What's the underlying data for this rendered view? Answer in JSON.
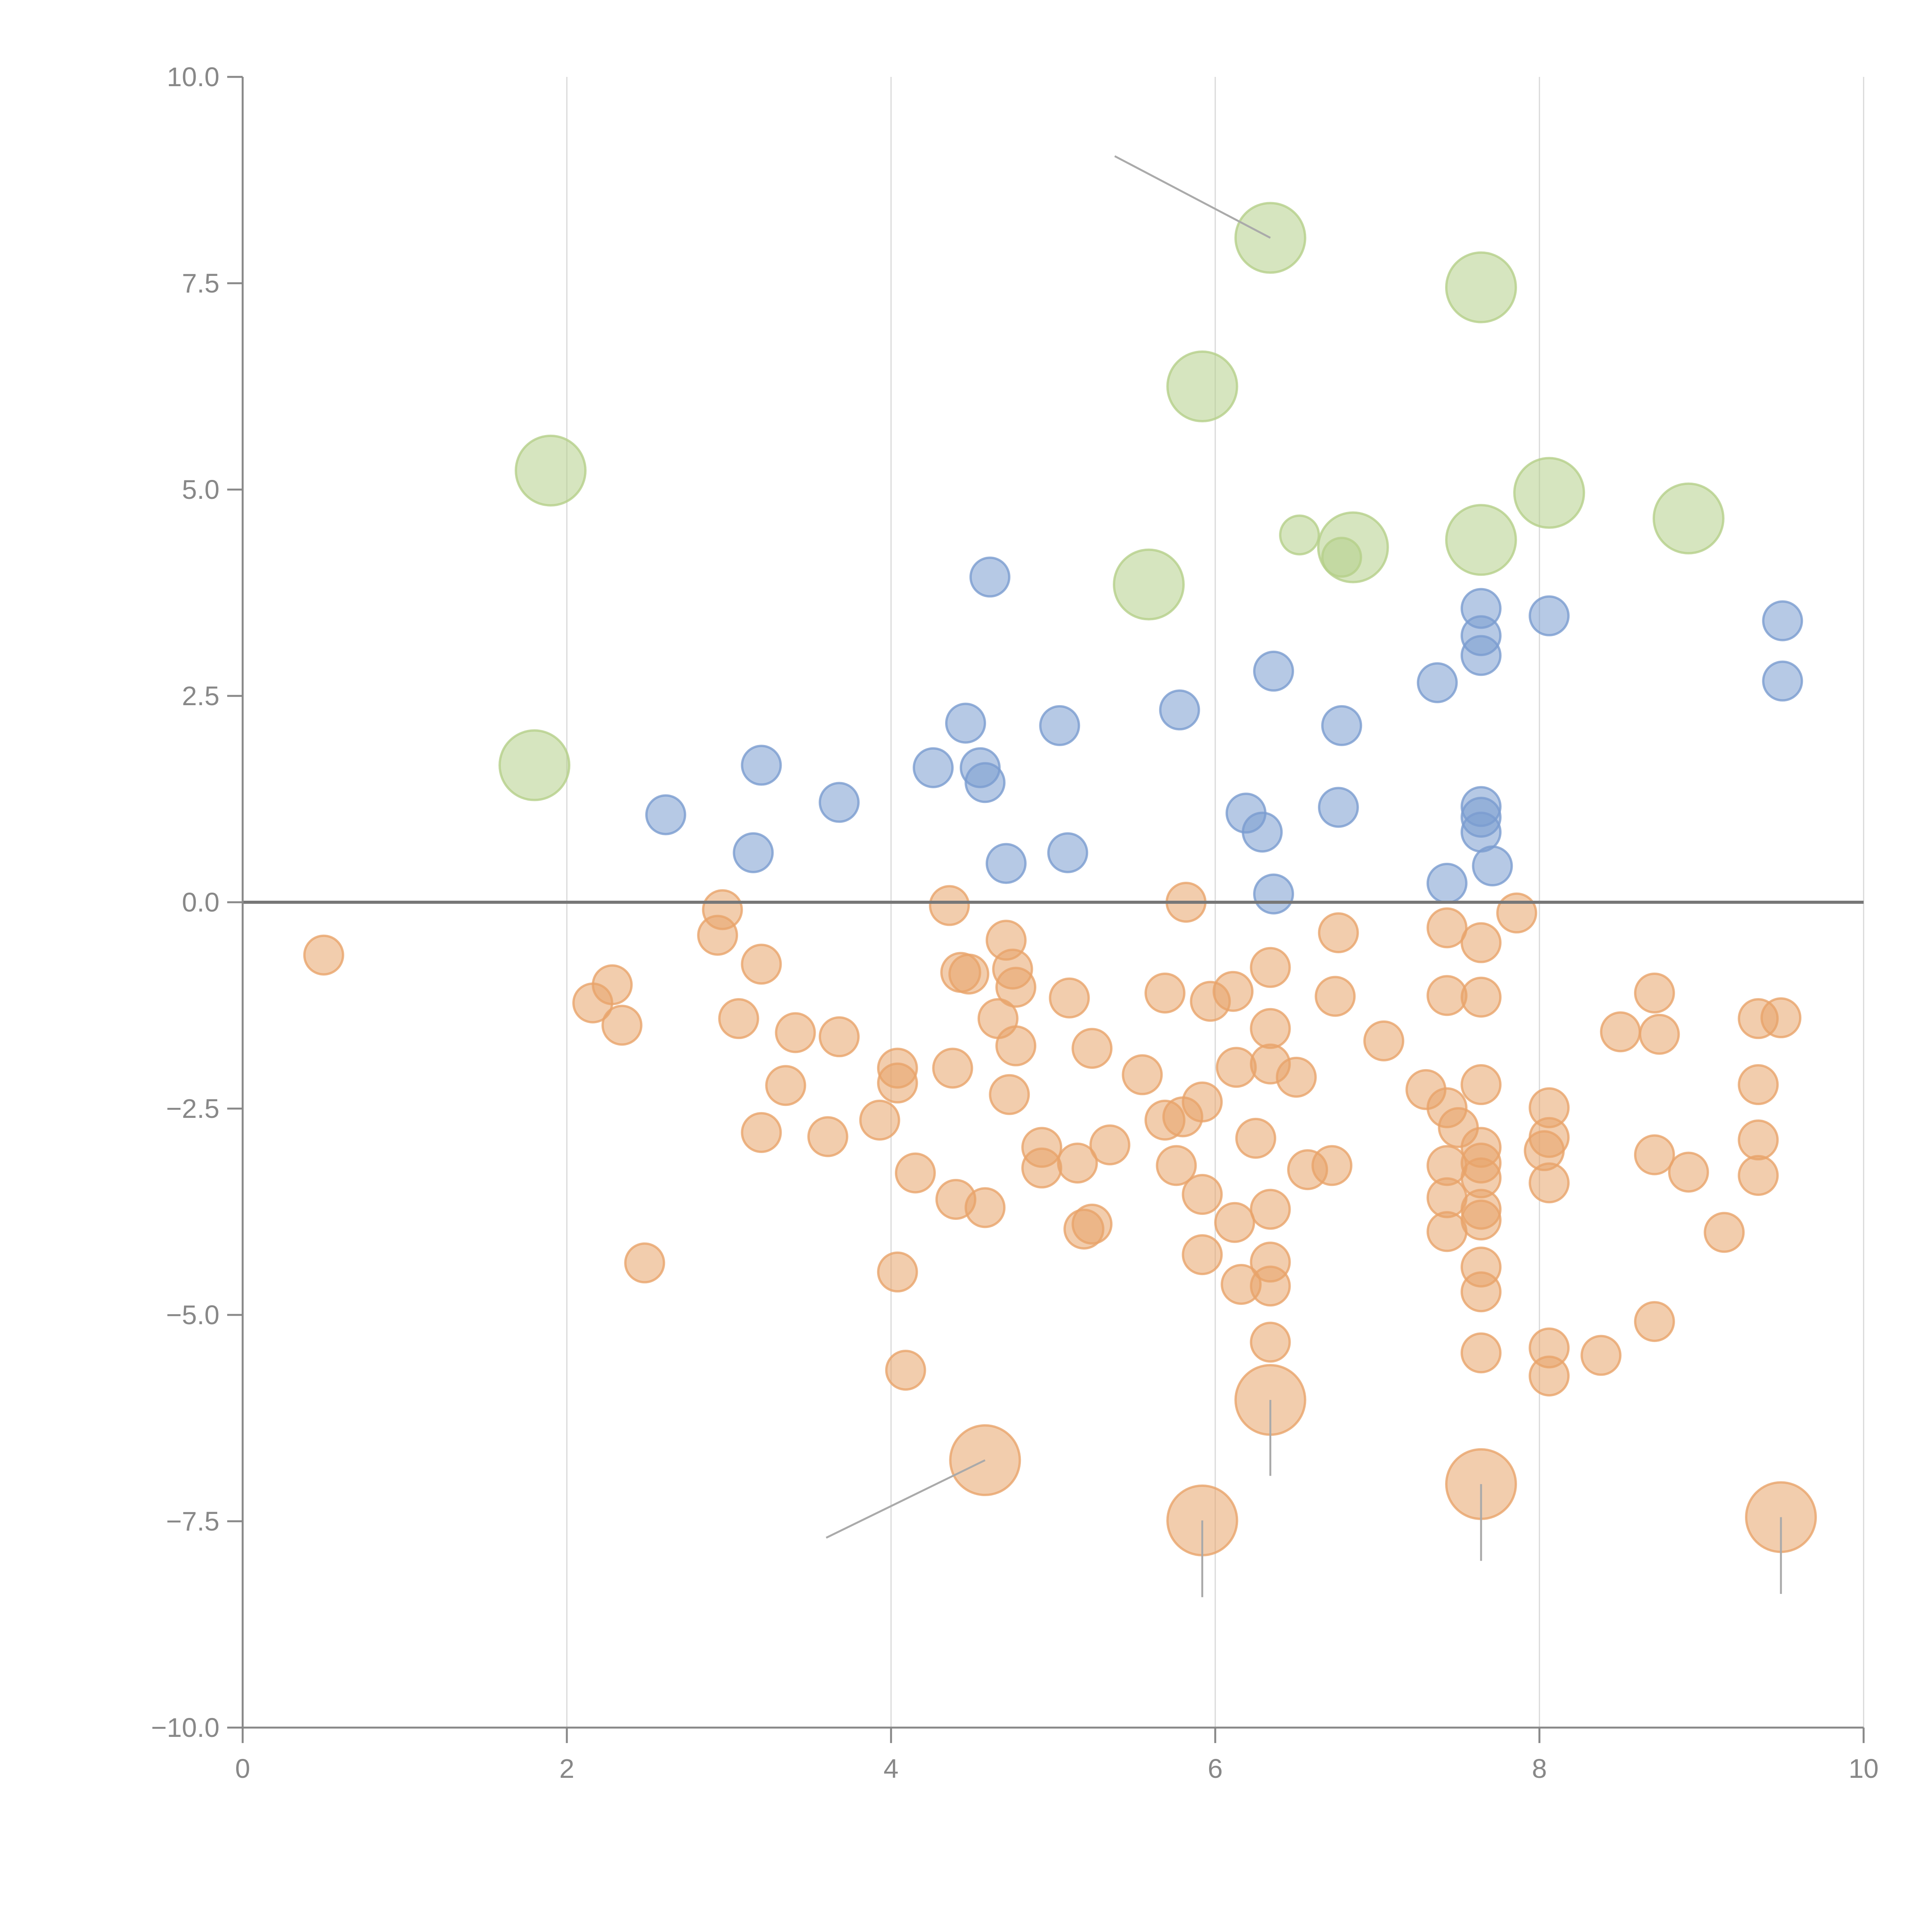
{
  "chart_data": {
    "type": "scatter",
    "title": "",
    "xlabel": "",
    "ylabel": "",
    "xlim": [
      0,
      10
    ],
    "ylim": [
      -10,
      10
    ],
    "x_ticks": [
      "0",
      "2",
      "4",
      "6",
      "8",
      "10"
    ],
    "y_ticks": [
      "10.0",
      "7.5",
      "5.0",
      "2.5",
      "0.0",
      "−2.5",
      "−5.0",
      "−7.5",
      "−10.0"
    ],
    "x_tick_values": [
      0,
      2,
      4,
      6,
      8,
      10
    ],
    "y_tick_values": [
      10,
      7.5,
      5,
      2.5,
      0,
      -2.5,
      -5,
      -7.5,
      -10
    ],
    "grid": "vertical",
    "colors": {
      "blue": "#7a9ccf",
      "green": "#b5d08a",
      "orange": "#e8a46a",
      "axis": "#888888",
      "zero_line": "#777777"
    },
    "series": [
      {
        "name": "blue",
        "color": "#7a9ccf",
        "size": "small",
        "points": [
          [
            2.61,
            1.06
          ],
          [
            3.15,
            0.6
          ],
          [
            3.2,
            1.66
          ],
          [
            3.68,
            1.21
          ],
          [
            4.26,
            1.63
          ],
          [
            4.46,
            2.17
          ],
          [
            4.55,
            1.63
          ],
          [
            4.58,
            1.45
          ],
          [
            4.71,
            0.47
          ],
          [
            4.61,
            3.94
          ],
          [
            5.04,
            2.14
          ],
          [
            5.09,
            0.6
          ],
          [
            5.78,
            2.33
          ],
          [
            6.19,
            1.08
          ],
          [
            6.29,
            0.85
          ],
          [
            6.36,
            2.8
          ],
          [
            6.36,
            0.1
          ],
          [
            6.78,
            2.14
          ],
          [
            6.76,
            1.15
          ],
          [
            7.37,
            2.66
          ],
          [
            7.43,
            0.23
          ],
          [
            7.64,
            3.56
          ],
          [
            7.64,
            3.23
          ],
          [
            7.64,
            2.99
          ],
          [
            7.64,
            1.16
          ],
          [
            7.64,
            1.03
          ],
          [
            7.64,
            0.85
          ],
          [
            7.71,
            0.44
          ],
          [
            8.06,
            3.47
          ],
          [
            9.5,
            3.41
          ],
          [
            9.5,
            2.68
          ]
        ]
      },
      {
        "name": "green",
        "color": "#b5d08a",
        "points": [
          [
            1.9,
            5.23,
            "large"
          ],
          [
            1.8,
            1.66,
            "large"
          ],
          [
            6.34,
            8.05,
            "large"
          ],
          [
            5.92,
            6.25,
            "large"
          ],
          [
            7.64,
            7.45,
            "large"
          ],
          [
            5.59,
            3.85,
            "large"
          ],
          [
            6.85,
            4.3,
            "large"
          ],
          [
            6.52,
            4.45,
            "small"
          ],
          [
            6.78,
            4.18,
            "small"
          ],
          [
            7.64,
            4.39,
            "large"
          ],
          [
            8.06,
            4.96,
            "large"
          ],
          [
            8.92,
            4.65,
            "large"
          ]
        ]
      },
      {
        "name": "orange",
        "color": "#e8a46a",
        "points": [
          [
            0.5,
            -0.64
          ],
          [
            2.16,
            -1.22
          ],
          [
            2.28,
            -1.0
          ],
          [
            2.34,
            -1.49
          ],
          [
            2.48,
            -4.37
          ],
          [
            2.93,
            -0.4
          ],
          [
            2.96,
            -0.09
          ],
          [
            3.06,
            -1.41
          ],
          [
            3.2,
            -0.75
          ],
          [
            3.2,
            -2.79
          ],
          [
            3.35,
            -2.22
          ],
          [
            3.41,
            -1.58
          ],
          [
            3.61,
            -2.84
          ],
          [
            3.68,
            -1.63
          ],
          [
            3.93,
            -2.64
          ],
          [
            4.04,
            -2.01
          ],
          [
            4.04,
            -2.19
          ],
          [
            4.04,
            -4.48
          ],
          [
            4.09,
            -5.67
          ],
          [
            4.15,
            -3.28
          ],
          [
            4.36,
            -0.04
          ],
          [
            4.38,
            -2.01
          ],
          [
            4.4,
            -3.6
          ],
          [
            4.43,
            -0.85
          ],
          [
            4.48,
            -0.87
          ],
          [
            4.58,
            -3.7
          ],
          [
            4.66,
            -1.41
          ],
          [
            4.71,
            -0.46
          ],
          [
            4.73,
            -2.33
          ],
          [
            4.75,
            -0.81
          ],
          [
            4.77,
            -1.74
          ],
          [
            4.77,
            -1.03
          ],
          [
            4.93,
            -2.97
          ],
          [
            4.93,
            -3.22
          ],
          [
            5.1,
            -1.16
          ],
          [
            5.15,
            -3.16
          ],
          [
            5.19,
            -3.96
          ],
          [
            5.24,
            -3.9
          ],
          [
            5.24,
            -1.77
          ],
          [
            5.35,
            -2.94
          ],
          [
            5.55,
            -2.09
          ],
          [
            5.69,
            -2.64
          ],
          [
            5.69,
            -1.1
          ],
          [
            5.8,
            -2.6
          ],
          [
            5.76,
            -3.19
          ],
          [
            5.82,
            0.0
          ],
          [
            5.92,
            -2.42
          ],
          [
            5.92,
            -3.54
          ],
          [
            5.92,
            -4.27
          ],
          [
            5.97,
            -1.2
          ],
          [
            6.11,
            -1.08
          ],
          [
            6.12,
            -3.88
          ],
          [
            6.13,
            -2.0
          ],
          [
            6.16,
            -4.63
          ],
          [
            6.25,
            -2.86
          ],
          [
            6.34,
            -0.79
          ],
          [
            6.34,
            -1.53
          ],
          [
            6.34,
            -1.96
          ],
          [
            6.34,
            -3.72
          ],
          [
            6.34,
            -4.36
          ],
          [
            6.34,
            -4.65
          ],
          [
            6.34,
            -5.33
          ],
          [
            6.5,
            -2.12
          ],
          [
            6.57,
            -3.24
          ],
          [
            6.72,
            -3.19
          ],
          [
            6.74,
            -1.14
          ],
          [
            6.76,
            -0.37
          ],
          [
            7.04,
            -1.68
          ],
          [
            7.3,
            -2.27
          ],
          [
            7.43,
            -0.31
          ],
          [
            7.43,
            -1.13
          ],
          [
            7.43,
            -2.49
          ],
          [
            7.43,
            -3.19
          ],
          [
            7.43,
            -3.58
          ],
          [
            7.43,
            -3.99
          ],
          [
            7.5,
            -2.73
          ],
          [
            7.64,
            -0.49
          ],
          [
            7.64,
            -1.15
          ],
          [
            7.64,
            -2.21
          ],
          [
            7.64,
            -2.97
          ],
          [
            7.64,
            -3.16
          ],
          [
            7.64,
            -3.34
          ],
          [
            7.64,
            -3.72
          ],
          [
            7.64,
            -3.85
          ],
          [
            7.64,
            -4.42
          ],
          [
            7.64,
            -4.72
          ],
          [
            7.64,
            -5.46
          ],
          [
            7.86,
            -0.13
          ],
          [
            8.06,
            -2.49
          ],
          [
            8.06,
            -2.85
          ],
          [
            8.03,
            -3.01
          ],
          [
            8.06,
            -3.4
          ],
          [
            8.06,
            -5.4
          ],
          [
            8.06,
            -5.74
          ],
          [
            8.38,
            -5.49
          ],
          [
            8.5,
            -1.57
          ],
          [
            8.71,
            -1.1
          ],
          [
            8.74,
            -1.6
          ],
          [
            8.71,
            -3.06
          ],
          [
            8.71,
            -5.08
          ],
          [
            8.92,
            -3.27
          ],
          [
            9.14,
            -4.0
          ],
          [
            9.35,
            -1.41
          ],
          [
            9.35,
            -2.21
          ],
          [
            9.35,
            -2.88
          ],
          [
            9.35,
            -3.31
          ],
          [
            9.49,
            -1.4
          ],
          [
            4.58,
            -6.76,
            "large"
          ],
          [
            6.34,
            -6.03,
            "large"
          ],
          [
            5.92,
            -7.49,
            "large"
          ],
          [
            7.64,
            -7.05,
            "large"
          ],
          [
            9.49,
            -7.45,
            "large"
          ]
        ]
      }
    ],
    "annotations": [
      {
        "point": [
          6.34,
          8.05
        ],
        "to": [
          5.38,
          9.04
        ],
        "label": ""
      },
      {
        "point": [
          4.58,
          -6.76
        ],
        "to": [
          3.6,
          -7.7
        ],
        "label": ""
      },
      {
        "point": [
          6.34,
          -6.03
        ],
        "to": [
          6.34,
          -6.95
        ],
        "label": ""
      },
      {
        "point": [
          5.92,
          -7.49
        ],
        "to": [
          5.92,
          -8.42
        ],
        "label": ""
      },
      {
        "point": [
          7.64,
          -7.05
        ],
        "to": [
          7.64,
          -7.98
        ],
        "label": ""
      },
      {
        "point": [
          9.49,
          -7.45
        ],
        "to": [
          9.49,
          -8.38
        ],
        "label": ""
      }
    ]
  }
}
